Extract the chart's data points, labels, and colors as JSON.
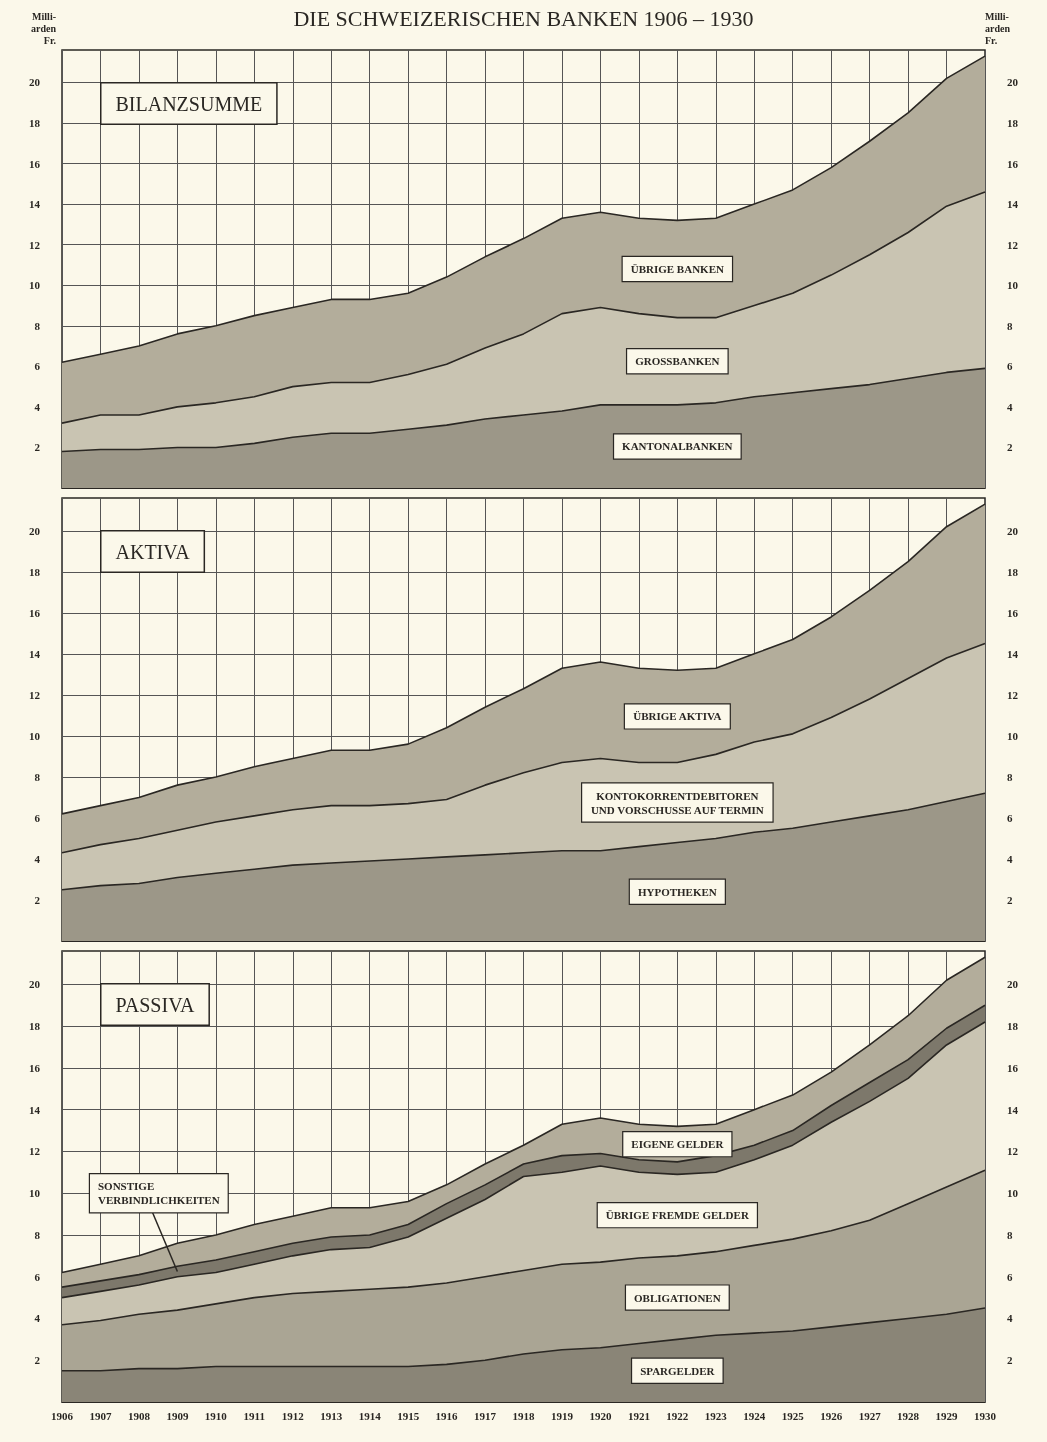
{
  "chart_data": [
    {
      "type": "area",
      "title": "DIE SCHWEIZERISCHEN BANKEN 1906 – 1930",
      "subtitle": "BILANZSUMME",
      "ylabel": "Milli-\narden\nFr.",
      "y2label": "Milli-\narden\nFr.",
      "stacked": true,
      "marker": "none",
      "grid": true,
      "tick_labels": "y",
      "x": [
        1906,
        1907,
        1908,
        1909,
        1910,
        1911,
        1912,
        1913,
        1914,
        1915,
        1916,
        1917,
        1918,
        1919,
        1920,
        1921,
        1922,
        1923,
        1924,
        1925,
        1926,
        1927,
        1928,
        1929,
        1930
      ],
      "xlim": [
        1906,
        1930
      ],
      "xticks": [
        1906,
        1907,
        1908,
        1909,
        1910,
        1911,
        1912,
        1913,
        1914,
        1915,
        1916,
        1917,
        1918,
        1919,
        1920,
        1921,
        1922,
        1923,
        1924,
        1925,
        1926,
        1927,
        1928,
        1929,
        1930
      ],
      "ylim": [
        0,
        21.6
      ],
      "yticks": [
        2,
        4,
        6,
        8,
        10,
        12,
        14,
        16,
        18,
        20
      ],
      "y2lim": [
        0,
        21.6
      ],
      "y2ticks": [
        2,
        4,
        6,
        8,
        10,
        12,
        14,
        16,
        18,
        20
      ],
      "series": [
        {
          "name": "KANTONALBANKEN",
          "color": "#9c9788",
          "values": [
            1.8,
            1.9,
            1.9,
            2.0,
            2.0,
            2.2,
            2.5,
            2.7,
            2.7,
            2.9,
            3.1,
            3.4,
            3.6,
            3.8,
            4.1,
            4.1,
            4.1,
            4.2,
            4.5,
            4.7,
            4.9,
            5.1,
            5.4,
            5.7,
            5.9
          ]
        },
        {
          "name": "GROSSBANKEN",
          "color": "#c9c4b2",
          "values": [
            1.4,
            1.7,
            1.7,
            2.0,
            2.2,
            2.3,
            2.5,
            2.5,
            2.5,
            2.7,
            3.0,
            3.5,
            4.0,
            4.8,
            4.8,
            4.5,
            4.3,
            4.2,
            4.5,
            4.9,
            5.6,
            6.4,
            7.2,
            8.2,
            8.7
          ]
        },
        {
          "name": "ÜBRIGE BANKEN",
          "color": "#b3ad9b",
          "values": [
            3.0,
            3.0,
            3.4,
            3.6,
            3.8,
            4.0,
            3.9,
            4.1,
            4.1,
            4.0,
            4.3,
            4.5,
            4.7,
            4.7,
            4.7,
            4.7,
            4.8,
            4.9,
            5.0,
            5.1,
            5.3,
            5.6,
            5.9,
            6.3,
            6.7
          ]
        }
      ]
    },
    {
      "type": "area",
      "subtitle": "AKTIVA",
      "stacked": true,
      "marker": "none",
      "grid": true,
      "tick_labels": "y",
      "x": [
        1906,
        1907,
        1908,
        1909,
        1910,
        1911,
        1912,
        1913,
        1914,
        1915,
        1916,
        1917,
        1918,
        1919,
        1920,
        1921,
        1922,
        1923,
        1924,
        1925,
        1926,
        1927,
        1928,
        1929,
        1930
      ],
      "xlim": [
        1906,
        1930
      ],
      "xticks": [
        1906,
        1907,
        1908,
        1909,
        1910,
        1911,
        1912,
        1913,
        1914,
        1915,
        1916,
        1917,
        1918,
        1919,
        1920,
        1921,
        1922,
        1923,
        1924,
        1925,
        1926,
        1927,
        1928,
        1929,
        1930
      ],
      "ylim": [
        0,
        21.6
      ],
      "yticks": [
        2,
        4,
        6,
        8,
        10,
        12,
        14,
        16,
        18,
        20
      ],
      "y2lim": [
        0,
        21.6
      ],
      "y2ticks": [
        2,
        4,
        6,
        8,
        10,
        12,
        14,
        16,
        18,
        20
      ],
      "series": [
        {
          "name": "HYPOTHEKEN",
          "color": "#9c9788",
          "values": [
            2.5,
            2.7,
            2.8,
            3.1,
            3.3,
            3.5,
            3.7,
            3.8,
            3.9,
            4.0,
            4.1,
            4.2,
            4.3,
            4.4,
            4.4,
            4.6,
            4.8,
            5.0,
            5.3,
            5.5,
            5.8,
            6.1,
            6.4,
            6.8,
            7.2
          ]
        },
        {
          "name": "KONTOKORRENTDEBITOREN\nUND VORSCHUSSE AUF TERMIN",
          "color": "#c9c4b2",
          "values": [
            1.8,
            2.0,
            2.2,
            2.3,
            2.5,
            2.6,
            2.7,
            2.8,
            2.7,
            2.7,
            2.8,
            3.4,
            3.9,
            4.3,
            4.5,
            4.1,
            3.9,
            4.1,
            4.4,
            4.6,
            5.1,
            5.7,
            6.4,
            7.0,
            7.3
          ]
        },
        {
          "name": "ÜBRIGE AKTIVA",
          "color": "#b3ad9b",
          "values": [
            1.9,
            1.9,
            2.0,
            2.2,
            2.2,
            2.4,
            2.5,
            2.7,
            2.7,
            2.9,
            3.5,
            3.8,
            4.1,
            4.6,
            4.7,
            4.6,
            4.5,
            4.2,
            4.3,
            4.6,
            4.9,
            5.3,
            5.7,
            6.4,
            6.8
          ]
        }
      ]
    },
    {
      "type": "area",
      "subtitle": "PASSIVA",
      "stacked": true,
      "marker": "none",
      "grid": true,
      "x": [
        1906,
        1907,
        1908,
        1909,
        1910,
        1911,
        1912,
        1913,
        1914,
        1915,
        1916,
        1917,
        1918,
        1919,
        1920,
        1921,
        1922,
        1923,
        1924,
        1925,
        1926,
        1927,
        1928,
        1929,
        1930
      ],
      "xlim": [
        1906,
        1930
      ],
      "xticks": [
        1906,
        1907,
        1908,
        1909,
        1910,
        1911,
        1912,
        1913,
        1914,
        1915,
        1916,
        1917,
        1918,
        1919,
        1920,
        1921,
        1922,
        1923,
        1924,
        1925,
        1926,
        1927,
        1928,
        1929,
        1930
      ],
      "ylim": [
        0,
        21.6
      ],
      "yticks": [
        2,
        4,
        6,
        8,
        10,
        12,
        14,
        16,
        18,
        20
      ],
      "y2lim": [
        0,
        21.6
      ],
      "y2ticks": [
        2,
        4,
        6,
        8,
        10,
        12,
        14,
        16,
        18,
        20
      ],
      "series": [
        {
          "name": "SPARGELDER",
          "color": "#8a8577",
          "values": [
            1.5,
            1.5,
            1.6,
            1.6,
            1.7,
            1.7,
            1.7,
            1.7,
            1.7,
            1.7,
            1.8,
            2.0,
            2.3,
            2.5,
            2.6,
            2.8,
            3.0,
            3.2,
            3.3,
            3.4,
            3.6,
            3.8,
            4.0,
            4.2,
            4.5
          ]
        },
        {
          "name": "OBLIGATIONEN",
          "color": "#aaa594",
          "values": [
            2.2,
            2.4,
            2.6,
            2.8,
            3.0,
            3.3,
            3.5,
            3.6,
            3.7,
            3.8,
            3.9,
            4.0,
            4.0,
            4.1,
            4.1,
            4.1,
            4.0,
            4.0,
            4.2,
            4.4,
            4.6,
            4.9,
            5.5,
            6.1,
            6.6
          ]
        },
        {
          "name": "ÜBRIGE FREMDE GELDER",
          "color": "#c9c4b2",
          "values": [
            1.3,
            1.4,
            1.4,
            1.6,
            1.5,
            1.6,
            1.8,
            2.0,
            2.0,
            2.4,
            3.1,
            3.7,
            4.5,
            4.4,
            4.6,
            4.1,
            3.9,
            3.8,
            4.1,
            4.5,
            5.2,
            5.7,
            6.0,
            6.8,
            7.1
          ]
        },
        {
          "name": "SONSTIGE\nVERBINDLICHKEITEN",
          "color": "#7d786b",
          "values": [
            0.5,
            0.5,
            0.5,
            0.5,
            0.6,
            0.6,
            0.6,
            0.6,
            0.6,
            0.6,
            0.7,
            0.7,
            0.6,
            0.8,
            0.6,
            0.6,
            0.6,
            0.8,
            0.7,
            0.7,
            0.8,
            0.9,
            0.9,
            0.8,
            0.8
          ]
        },
        {
          "name": "EIGENE GELDER",
          "color": "#b3ad9b",
          "values": [
            0.7,
            0.8,
            0.9,
            1.1,
            1.2,
            1.3,
            1.3,
            1.4,
            1.3,
            1.1,
            0.9,
            1.0,
            0.9,
            1.5,
            1.7,
            1.7,
            1.7,
            1.5,
            1.7,
            1.7,
            1.6,
            1.8,
            2.1,
            2.3,
            2.3
          ]
        }
      ]
    }
  ]
}
